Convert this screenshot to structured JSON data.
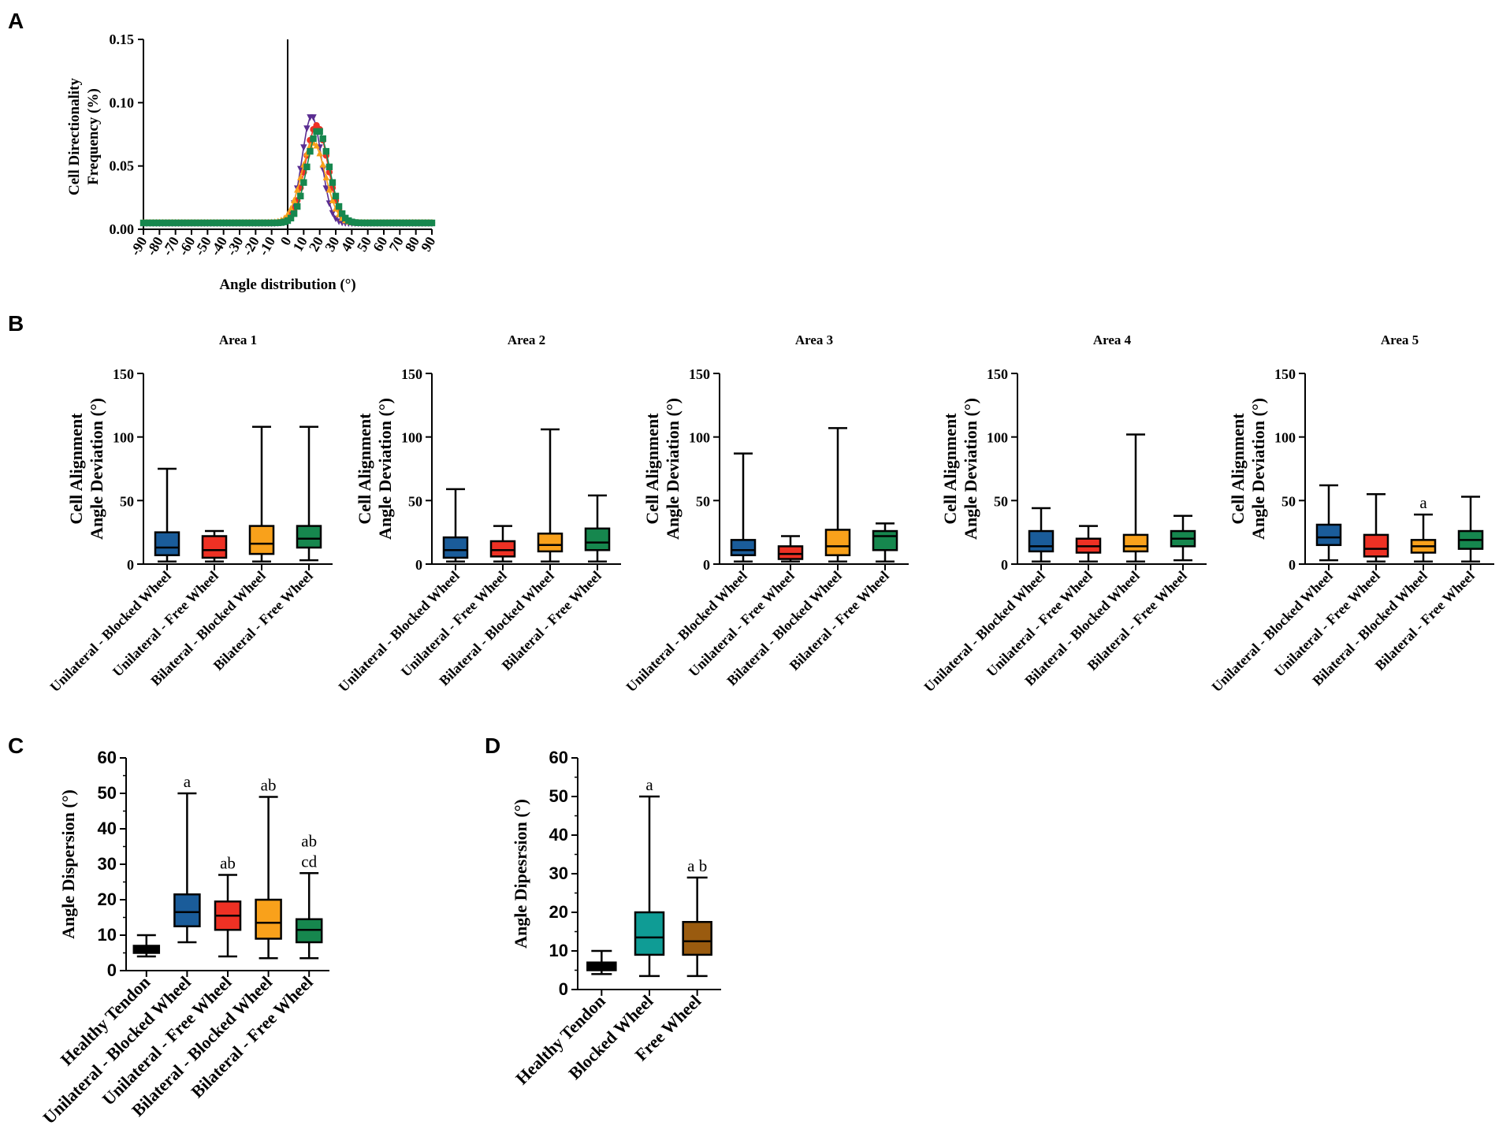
{
  "colors": {
    "blue": "#1a5c9a",
    "red": "#ee3124",
    "orange": "#f9a11b",
    "green": "#16874e",
    "black": "#000000",
    "teal": "#0f9c95",
    "brown": "#9a5b0f",
    "purple": "#5a2d91"
  },
  "chart_data": [
    {
      "panel": "A",
      "type": "line",
      "title": "",
      "xlabel": "Angle distribution (°)",
      "ylabel": "Cell Directionality Frequency (%)",
      "xlim": [
        -90,
        90
      ],
      "ylim": [
        0,
        0.15
      ],
      "x_ticks": [
        "-90",
        "-80",
        "-70",
        "-60",
        "-50",
        "-40",
        "-30",
        "-20",
        "-10",
        "0",
        "10",
        "20",
        "30",
        "40",
        "50",
        "60",
        "70",
        "80",
        "90"
      ],
      "y_ticks": [
        "0.00",
        "0.05",
        "0.10",
        "0.15"
      ],
      "series": [
        {
          "name": "Unilateral - Blocked Wheel",
          "color": "purple",
          "marker": "triangle-down",
          "peak_x": 15,
          "peak_y": 0.09,
          "sigma": 6
        },
        {
          "name": "Unilateral - Free Wheel",
          "color": "red",
          "marker": "circle",
          "peak_x": 18,
          "peak_y": 0.082,
          "sigma": 7
        },
        {
          "name": "Bilateral - Blocked Wheel",
          "color": "orange",
          "marker": "triangle-up",
          "peak_x": 16,
          "peak_y": 0.068,
          "sigma": 7.5
        },
        {
          "name": "Bilateral - Free Wheel",
          "color": "green",
          "marker": "square",
          "peak_x": 19,
          "peak_y": 0.078,
          "sigma": 7
        }
      ],
      "baseline": 0.005
    },
    {
      "panel": "B",
      "type": "box",
      "title": "Area 1",
      "ylabel": "Cell Alignment Angle Deviation (°)",
      "ylim": [
        0,
        150
      ],
      "y_ticks": [
        "0",
        "50",
        "100",
        "150"
      ],
      "categories": [
        "Unilateral - Blocked Wheel",
        "Unilateral - Free Wheel",
        "Bilateral - Blocked Wheel",
        "Bilateral - Free Wheel"
      ],
      "colors": [
        "blue",
        "red",
        "orange",
        "green"
      ],
      "boxes": [
        {
          "min": 2,
          "q1": 7,
          "median": 13,
          "q3": 25,
          "max": 75,
          "label": ""
        },
        {
          "min": 2,
          "q1": 5,
          "median": 11,
          "q3": 22,
          "max": 26,
          "label": ""
        },
        {
          "min": 2,
          "q1": 8,
          "median": 16,
          "q3": 30,
          "max": 108,
          "label": ""
        },
        {
          "min": 3,
          "q1": 13,
          "median": 20,
          "q3": 30,
          "max": 108,
          "label": ""
        }
      ]
    },
    {
      "panel": "B",
      "type": "box",
      "title": "Area 2",
      "ylabel": "Cell Alignment Angle Deviation (°)",
      "ylim": [
        0,
        150
      ],
      "y_ticks": [
        "0",
        "50",
        "100",
        "150"
      ],
      "categories": [
        "Unilateral - Blocked Wheel",
        "Unilateral - Free Wheel",
        "Bilateral - Blocked Wheel",
        "Bilateral - Free Wheel"
      ],
      "colors": [
        "blue",
        "red",
        "orange",
        "green"
      ],
      "boxes": [
        {
          "min": 2,
          "q1": 5,
          "median": 11,
          "q3": 21,
          "max": 59,
          "label": ""
        },
        {
          "min": 2,
          "q1": 6,
          "median": 11,
          "q3": 18,
          "max": 30,
          "label": ""
        },
        {
          "min": 2,
          "q1": 10,
          "median": 15,
          "q3": 24,
          "max": 106,
          "label": ""
        },
        {
          "min": 2,
          "q1": 11,
          "median": 17,
          "q3": 28,
          "max": 54,
          "label": ""
        }
      ]
    },
    {
      "panel": "B",
      "type": "box",
      "title": "Area 3",
      "ylabel": "Cell Alignment Angle Deviation (°)",
      "ylim": [
        0,
        150
      ],
      "y_ticks": [
        "0",
        "50",
        "100",
        "150"
      ],
      "categories": [
        "Unilateral - Blocked Wheel",
        "Unilateral - Free Wheel",
        "Bilateral - Blocked Wheel",
        "Bilateral - Free Wheel"
      ],
      "colors": [
        "blue",
        "red",
        "orange",
        "green"
      ],
      "boxes": [
        {
          "min": 2,
          "q1": 7,
          "median": 11,
          "q3": 19,
          "max": 87,
          "label": ""
        },
        {
          "min": 2,
          "q1": 4,
          "median": 8,
          "q3": 14,
          "max": 22,
          "label": ""
        },
        {
          "min": 2,
          "q1": 7,
          "median": 14,
          "q3": 27,
          "max": 107,
          "label": ""
        },
        {
          "min": 2,
          "q1": 11,
          "median": 22,
          "q3": 26,
          "max": 32,
          "label": ""
        }
      ]
    },
    {
      "panel": "B",
      "type": "box",
      "title": "Area 4",
      "ylabel": "Cell Alignment Angle Deviation (°)",
      "ylim": [
        0,
        150
      ],
      "y_ticks": [
        "0",
        "50",
        "100",
        "150"
      ],
      "categories": [
        "Unilateral - Blocked Wheel",
        "Unilateral - Free Wheel",
        "Bilateral - Blocked Wheel",
        "Bilateral - Free Wheel"
      ],
      "colors": [
        "blue",
        "red",
        "orange",
        "green"
      ],
      "boxes": [
        {
          "min": 2,
          "q1": 10,
          "median": 14,
          "q3": 26,
          "max": 44,
          "label": ""
        },
        {
          "min": 2,
          "q1": 9,
          "median": 14,
          "q3": 20,
          "max": 30,
          "label": ""
        },
        {
          "min": 2,
          "q1": 10,
          "median": 14,
          "q3": 23,
          "max": 102,
          "label": ""
        },
        {
          "min": 3,
          "q1": 14,
          "median": 20,
          "q3": 26,
          "max": 38,
          "label": ""
        }
      ]
    },
    {
      "panel": "B",
      "type": "box",
      "title": "Area 5",
      "ylabel": "Cell Alignment Angle Deviation (°)",
      "ylim": [
        0,
        150
      ],
      "y_ticks": [
        "0",
        "50",
        "100",
        "150"
      ],
      "categories": [
        "Unilateral - Blocked Wheel",
        "Unilateral - Free Wheel",
        "Bilateral - Blocked Wheel",
        "Bilateral - Free Wheel"
      ],
      "colors": [
        "blue",
        "red",
        "orange",
        "green"
      ],
      "boxes": [
        {
          "min": 3,
          "q1": 15,
          "median": 21,
          "q3": 31,
          "max": 62,
          "label": ""
        },
        {
          "min": 2,
          "q1": 6,
          "median": 12,
          "q3": 23,
          "max": 55,
          "label": ""
        },
        {
          "min": 2,
          "q1": 9,
          "median": 14,
          "q3": 19,
          "max": 39,
          "label": "a"
        },
        {
          "min": 2,
          "q1": 12,
          "median": 19,
          "q3": 26,
          "max": 53,
          "label": ""
        }
      ]
    },
    {
      "panel": "C",
      "type": "box",
      "title": "",
      "ylabel": "Angle Dispersion (°)",
      "ylim": [
        0,
        60
      ],
      "y_ticks": [
        "0",
        "10",
        "20",
        "30",
        "40",
        "50",
        "60"
      ],
      "categories": [
        "Healthy Tendon",
        "Unilateral - Blocked Wheel",
        "Unilateral - Free Wheel",
        "Bilateral - Blocked Wheel",
        "Bilateral - Free Wheel"
      ],
      "colors": [
        "black",
        "blue",
        "red",
        "orange",
        "green"
      ],
      "boxes": [
        {
          "min": 4,
          "q1": 5,
          "median": 6,
          "q3": 7,
          "max": 10,
          "label": ""
        },
        {
          "min": 8,
          "q1": 12.5,
          "median": 16.5,
          "q3": 21.5,
          "max": 50,
          "label": "a"
        },
        {
          "min": 4,
          "q1": 11.5,
          "median": 15.5,
          "q3": 19.5,
          "max": 27,
          "label": "ab"
        },
        {
          "min": 3.5,
          "q1": 9,
          "median": 13.5,
          "q3": 20,
          "max": 49,
          "label": "ab"
        },
        {
          "min": 3.5,
          "q1": 8,
          "median": 11.5,
          "q3": 14.5,
          "max": 27.5,
          "label": "ab\ncd"
        }
      ]
    },
    {
      "panel": "D",
      "type": "box",
      "title": "",
      "ylabel": "Angle Dipesrsion (°)",
      "ylim": [
        0,
        60
      ],
      "y_ticks": [
        "0",
        "10",
        "20",
        "30",
        "40",
        "50",
        "60"
      ],
      "categories": [
        "Healthy Tendon",
        "Blocked Wheel",
        "Free Wheel"
      ],
      "colors": [
        "black",
        "teal",
        "brown"
      ],
      "boxes": [
        {
          "min": 4,
          "q1": 5,
          "median": 6,
          "q3": 7,
          "max": 10,
          "label": ""
        },
        {
          "min": 3.5,
          "q1": 9,
          "median": 13.5,
          "q3": 20,
          "max": 50,
          "label": "a"
        },
        {
          "min": 3.5,
          "q1": 9,
          "median": 12.5,
          "q3": 17.5,
          "max": 29,
          "label": "a b"
        }
      ]
    }
  ],
  "panel_labels": [
    "A",
    "B",
    "C",
    "D"
  ]
}
